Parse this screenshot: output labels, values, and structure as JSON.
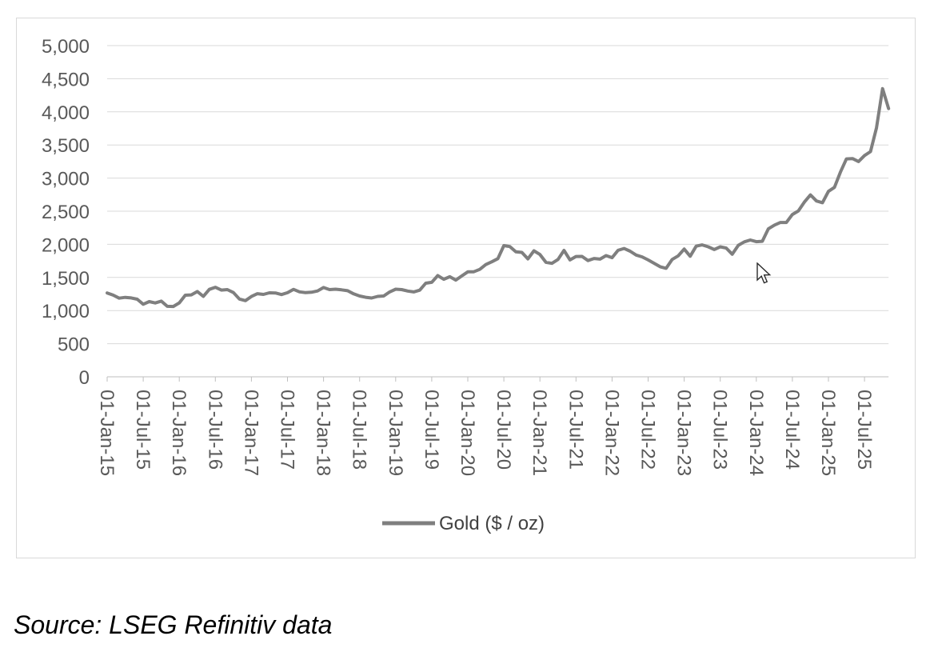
{
  "page": {
    "background_color": "#ffffff",
    "source_note": "Source: LSEG Refinitiv data"
  },
  "icons": {
    "cursor": "arrow-pointer-icon"
  },
  "chart_data": {
    "type": "line",
    "title": "",
    "xlabel": "",
    "ylabel": "",
    "grid": "horizontal",
    "legend_position": "bottom-center",
    "y_axis": {
      "min": 0,
      "max": 5000,
      "interval": 500,
      "tick_labels": [
        "0",
        "500",
        "1,000",
        "1,500",
        "2,000",
        "2,500",
        "3,000",
        "3,500",
        "4,000",
        "4,500",
        "5,000"
      ]
    },
    "x_axis": {
      "tick_interval_months": 6,
      "tick_labels": [
        "01-Jan-15",
        "01-Jul-15",
        "01-Jan-16",
        "01-Jul-16",
        "01-Jan-17",
        "01-Jul-17",
        "01-Jan-18",
        "01-Jul-18",
        "01-Jan-19",
        "01-Jul-19",
        "01-Jan-20",
        "01-Jul-20",
        "01-Jan-21",
        "01-Jul-21",
        "01-Jan-22",
        "01-Jul-22",
        "01-Jan-23",
        "01-Jul-23",
        "01-Jan-24",
        "01-Jul-24",
        "01-Jan-25",
        "01-Jul-25"
      ]
    },
    "colors": {
      "series": "#7f7f7f",
      "gridline": "#d9d9d9",
      "axis_line": "#bfbfbf",
      "tick_text": "#595959",
      "legend_text": "#404040",
      "panel_border": "#d9d9d9"
    },
    "series": [
      {
        "name": "Gold ($ / oz)",
        "color": "#7f7f7f",
        "start": "2015-01",
        "frequency": "monthly",
        "values": [
          1266,
          1233,
          1187,
          1199,
          1191,
          1171,
          1096,
          1135,
          1115,
          1142,
          1064,
          1061,
          1116,
          1232,
          1237,
          1288,
          1214,
          1320,
          1351,
          1309,
          1317,
          1272,
          1174,
          1150,
          1212,
          1255,
          1244,
          1268,
          1266,
          1241,
          1269,
          1320,
          1283,
          1270,
          1277,
          1296,
          1348,
          1317,
          1323,
          1313,
          1300,
          1252,
          1220,
          1201,
          1190,
          1214,
          1220,
          1281,
          1323,
          1316,
          1295,
          1282,
          1308,
          1413,
          1426,
          1528,
          1472,
          1511,
          1460,
          1523,
          1584,
          1586,
          1622,
          1694,
          1737,
          1784,
          1981,
          1966,
          1888,
          1878,
          1780,
          1902,
          1847,
          1728,
          1712,
          1772,
          1908,
          1765,
          1817,
          1818,
          1755,
          1786,
          1777,
          1830,
          1798,
          1910,
          1937,
          1896,
          1838,
          1810,
          1765,
          1714,
          1662,
          1638,
          1772,
          1826,
          1929,
          1820,
          1972,
          1992,
          1963,
          1921,
          1962,
          1943,
          1850,
          1986,
          2038,
          2065,
          2040,
          2046,
          2233,
          2290,
          2330,
          2330,
          2450,
          2505,
          2638,
          2746,
          2655,
          2628,
          2800,
          2860,
          3090,
          3290,
          3295,
          3250,
          3340,
          3400,
          3760,
          4350,
          4050
        ]
      }
    ]
  }
}
